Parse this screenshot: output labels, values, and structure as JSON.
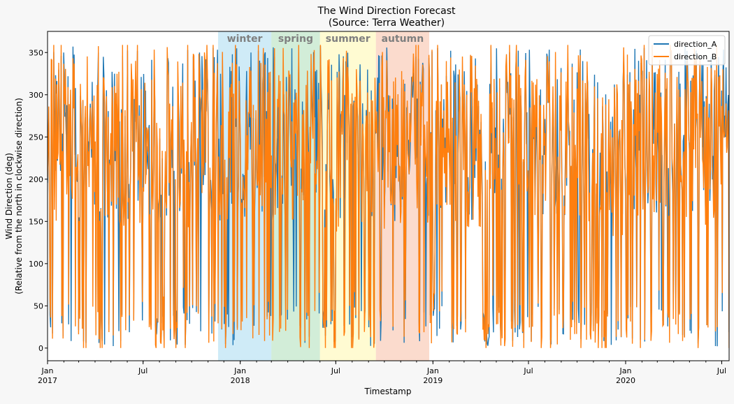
{
  "chart_data": {
    "type": "line",
    "title": "The Wind Direction Forecast",
    "subtitle": "(Source: Terra Weather)",
    "xlabel": "Timestamp",
    "ylabel": "Wind Direction (deg)",
    "ylabel2": "(Relative from the north in clockwise direction)",
    "x_range": [
      "2017-01-01",
      "2020-07-15"
    ],
    "ylim": [
      -15,
      375
    ],
    "y_ticks": [
      0,
      50,
      100,
      150,
      200,
      250,
      300,
      350
    ],
    "x_ticks": [
      {
        "date": "2017-01-01",
        "label": "Jan",
        "year": "2017"
      },
      {
        "date": "2017-07-01",
        "label": "Jul",
        "year": ""
      },
      {
        "date": "2018-01-01",
        "label": "Jan",
        "year": "2018"
      },
      {
        "date": "2018-07-01",
        "label": "Jul",
        "year": ""
      },
      {
        "date": "2019-01-01",
        "label": "Jan",
        "year": "2019"
      },
      {
        "date": "2019-07-01",
        "label": "Jul",
        "year": ""
      },
      {
        "date": "2020-01-01",
        "label": "Jan",
        "year": "2020"
      },
      {
        "date": "2020-07-01",
        "label": "Jul",
        "year": ""
      }
    ],
    "seasons": [
      {
        "label": "winter",
        "start": "2017-11-20",
        "end": "2018-03-01",
        "color": "#87ceeb"
      },
      {
        "label": "spring",
        "start": "2018-03-01",
        "end": "2018-06-01",
        "color": "#8fd19e"
      },
      {
        "label": "summer",
        "start": "2018-06-01",
        "end": "2018-09-15",
        "color": "#fff68f"
      },
      {
        "label": "autumn",
        "start": "2018-09-15",
        "end": "2018-12-25",
        "color": "#f4a582"
      }
    ],
    "series": [
      {
        "name": "direction_A",
        "color": "#1f77b4"
      },
      {
        "name": "direction_B",
        "color": "#ff7f0e"
      }
    ],
    "legend_position": "top-right",
    "grid": false
  }
}
